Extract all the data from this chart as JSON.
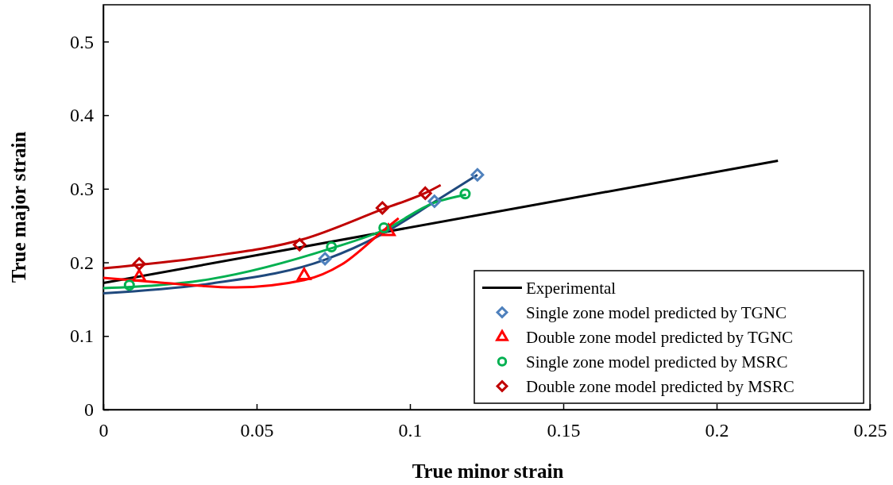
{
  "chart_data": {
    "type": "scatter",
    "xlabel": "True minor strain",
    "ylabel": "True major strain",
    "xlim": [
      0,
      0.25
    ],
    "xticks": [
      0,
      0.05,
      0.1,
      0.15,
      0.2,
      0.25
    ],
    "ylim": [
      0,
      0.55
    ],
    "yticks": [
      0,
      0.1,
      0.2,
      0.3,
      0.4,
      0.5
    ],
    "grid": false,
    "legend": "bottom right",
    "series": [
      {
        "name": "Experimental",
        "type": "line",
        "color": "#000000",
        "marker": "none",
        "x": [
          0,
          0.22
        ],
        "values": [
          0.172,
          0.338
        ]
      },
      {
        "name": "Single zone model predicted by TGNC",
        "type": "scatter",
        "color": "#4f81bd",
        "marker": "diamond",
        "x": [
          0.0723,
          0.108,
          0.122
        ],
        "values": [
          0.205,
          0.283,
          0.319
        ]
      },
      {
        "name": "Double zone model predicted by TGNC",
        "type": "scatter",
        "color": "#ff0000",
        "marker": "triangle",
        "x": [
          0.0117,
          0.0655,
          0.093
        ],
        "values": [
          0.18,
          0.182,
          0.242
        ]
      },
      {
        "name": "Single zone model predicted by MSRC",
        "type": "scatter",
        "color": "#00b050",
        "marker": "circle",
        "x": [
          0.0085,
          0.0744,
          0.0915,
          0.118
        ],
        "values": [
          0.169,
          0.221,
          0.247,
          0.293
        ]
      },
      {
        "name": "Double zone model predicted by MSRC",
        "type": "scatter",
        "color": "#c00000",
        "marker": "diamond",
        "x": [
          0.0117,
          0.064,
          0.091,
          0.105
        ],
        "values": [
          0.198,
          0.224,
          0.274,
          0.294
        ]
      },
      {
        "type": "line",
        "color": "#1f497d",
        "marker": "none",
        "x": [
          0,
          0.0345,
          0.0725,
          0.0907,
          0.1079,
          0.122
        ],
        "values": [
          0.158,
          0.171,
          0.204,
          0.238,
          0.282,
          0.319
        ]
      },
      {
        "type": "line",
        "color": "#00b050",
        "marker": "none",
        "x": [
          0,
          0.0345,
          0.0743,
          0.0915,
          0.1079,
          0.1183
        ],
        "values": [
          0.165,
          0.177,
          0.219,
          0.244,
          0.281,
          0.292
        ]
      },
      {
        "type": "line",
        "color": "#ff0000",
        "marker": "none",
        "x": [
          0,
          0.0173,
          0.0432,
          0.0656,
          0.0777,
          0.0907,
          0.0963
        ],
        "values": [
          0.179,
          0.173,
          0.166,
          0.176,
          0.197,
          0.241,
          0.26
        ]
      },
      {
        "type": "line",
        "color": "#c00000",
        "marker": "none",
        "x": [
          0,
          0.0345,
          0.0648,
          0.0915,
          0.1054,
          0.11
        ],
        "values": [
          0.192,
          0.208,
          0.231,
          0.273,
          0.295,
          0.305
        ]
      }
    ]
  }
}
